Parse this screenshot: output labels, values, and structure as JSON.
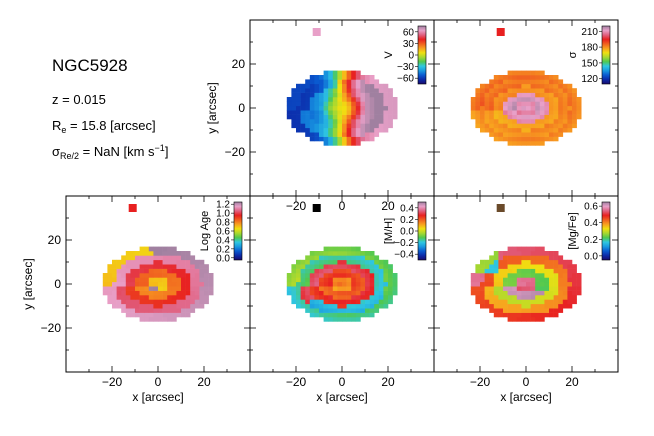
{
  "info": {
    "galaxy": "NGC5928",
    "redshift": "z = 0.015",
    "re_sym": "R",
    "re_sub": "e",
    "re_text": " = 15.8 [arcsec]",
    "sigma_sym": "σ",
    "sigma_sub": "Re/2",
    "sigma_text": " = NaN [km s",
    "sigma_sup": "−1",
    "sigma_end": "]"
  },
  "colors": {
    "colormap": [
      "#1a0a6e",
      "#0c2aa8",
      "#0a5ad0",
      "#1a9ae0",
      "#30c8e0",
      "#50c850",
      "#a8d830",
      "#f0e010",
      "#f8a020",
      "#f06020",
      "#e82020",
      "#e06080",
      "#e8a0c8",
      "#a080a0"
    ]
  },
  "chart_data": [
    {
      "type": "heatmap",
      "name": "velocity-map",
      "quantity_label": "V",
      "colorbar_ticks": [
        "60",
        "30",
        "0",
        "−30",
        "−60"
      ],
      "colorbar_range": [
        -75,
        75
      ],
      "xlim": [
        -40,
        40
      ],
      "ylim": [
        -40,
        40
      ],
      "x_ticks": [
        "−20",
        "0",
        "20"
      ],
      "y_ticks": [
        "20",
        "0",
        "−20"
      ],
      "xlabel": "",
      "ylabel": "y [arcsec]",
      "ellipse": {
        "cx": 0,
        "cy": 0,
        "a": 24,
        "b": 17
      },
      "psf_color": "#e8a0c8"
    },
    {
      "type": "heatmap",
      "name": "dispersion-map",
      "quantity_label": "σ",
      "colorbar_ticks": [
        "210",
        "180",
        "150",
        "120"
      ],
      "colorbar_range": [
        110,
        220
      ],
      "xlim": [
        -40,
        40
      ],
      "ylim": [
        -40,
        40
      ],
      "x_ticks": [],
      "y_ticks": [],
      "xlabel": "",
      "ylabel": "",
      "ellipse": {
        "cx": 0,
        "cy": 0,
        "a": 24,
        "b": 17
      },
      "psf_color": "#e82020"
    },
    {
      "type": "heatmap",
      "name": "age-map",
      "quantity_label": "Log Age",
      "colorbar_ticks": [
        "1.2",
        "1.0",
        "0.8",
        "0.6",
        "0.4",
        "0.2",
        "0.0"
      ],
      "colorbar_range": [
        -0.05,
        1.25
      ],
      "xlim": [
        -40,
        40
      ],
      "ylim": [
        -40,
        40
      ],
      "x_ticks": [
        "−20",
        "0",
        "20"
      ],
      "y_ticks": [
        "20",
        "0",
        "−20"
      ],
      "xlabel": "x [arcsec]",
      "ylabel": "y [arcsec]",
      "ellipse": {
        "cx": 0,
        "cy": 0,
        "a": 24,
        "b": 17
      },
      "psf_color": "#e82020"
    },
    {
      "type": "heatmap",
      "name": "metallicity-map",
      "quantity_label": "[M/H]",
      "colorbar_ticks": [
        "0.4",
        "0.2",
        "0.0",
        "−0.2",
        "−0.4"
      ],
      "colorbar_range": [
        -0.5,
        0.5
      ],
      "xlim": [
        -40,
        40
      ],
      "ylim": [
        -40,
        40
      ],
      "x_ticks": [
        "−20",
        "0",
        "20"
      ],
      "y_ticks": [],
      "xlabel": "x [arcsec]",
      "ylabel": "",
      "ellipse": {
        "cx": 0,
        "cy": 0,
        "a": 24,
        "b": 17
      },
      "psf_color": "#000000"
    },
    {
      "type": "heatmap",
      "name": "alpha-map",
      "quantity_label": "[Mg/Fe]",
      "colorbar_ticks": [
        "0.6",
        "0.4",
        "0.2",
        "0.0"
      ],
      "colorbar_range": [
        -0.05,
        0.65
      ],
      "xlim": [
        -40,
        40
      ],
      "ylim": [
        -40,
        40
      ],
      "x_ticks": [
        "−20",
        "0",
        "20"
      ],
      "y_ticks": [],
      "xlabel": "x [arcsec]",
      "ylabel": "",
      "ellipse": {
        "cx": 0,
        "cy": 0,
        "a": 24,
        "b": 17
      },
      "psf_color": "#6a4a2a"
    }
  ]
}
